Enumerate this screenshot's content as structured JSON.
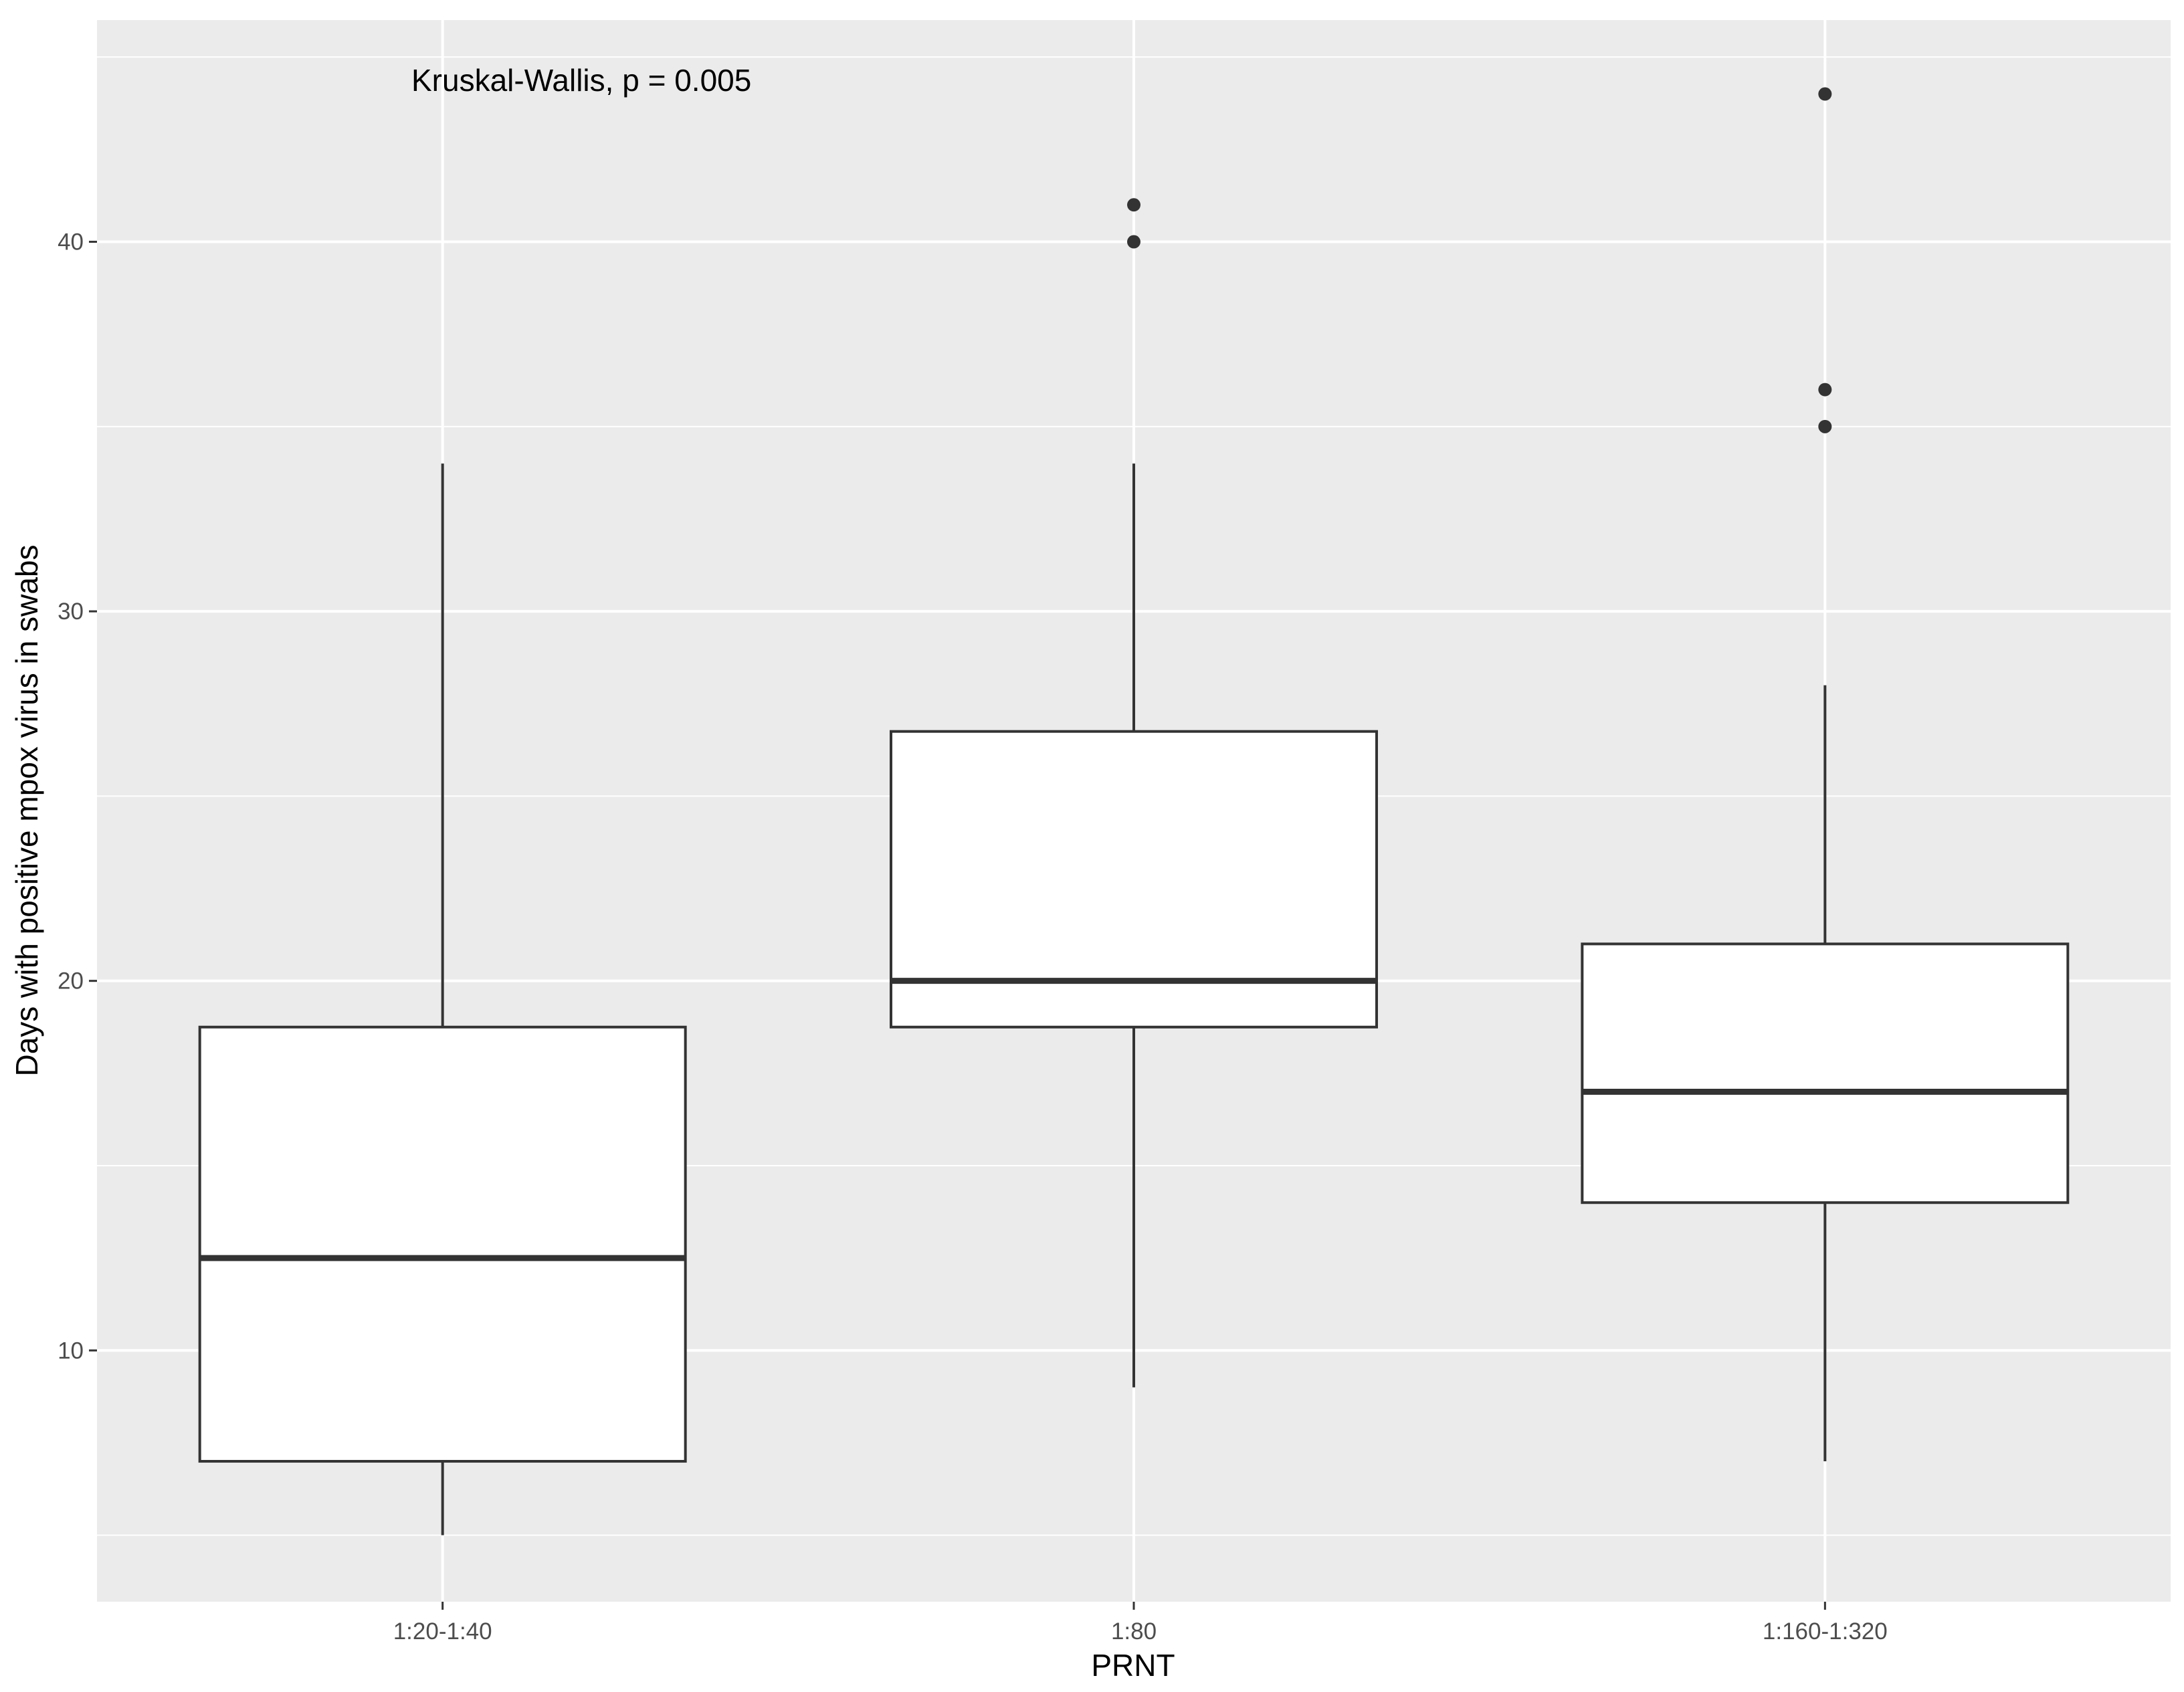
{
  "chart_data": {
    "type": "boxplot",
    "annotation": "Kruskal-Wallis, p = 0.005",
    "xlabel": "PRNT",
    "ylabel": "Days with positive mpox virus in swabs",
    "y_ticks": [
      10,
      20,
      30,
      40
    ],
    "ylim": [
      3.2,
      46.0
    ],
    "grid": true,
    "categories": [
      "1:20-1:40",
      "1:80",
      "1:160-1:320"
    ],
    "boxes": [
      {
        "category": "1:20-1:40",
        "whisker_low": 5,
        "q1": 7,
        "median": 12.5,
        "q3": 18.75,
        "whisker_high": 34,
        "outliers": []
      },
      {
        "category": "1:80",
        "whisker_low": 9,
        "q1": 18.75,
        "median": 20,
        "q3": 26.75,
        "whisker_high": 34,
        "outliers": [
          40,
          41
        ]
      },
      {
        "category": "1:160-1:320",
        "whisker_low": 7,
        "q1": 14,
        "median": 17,
        "q3": 21,
        "whisker_high": 28,
        "outliers": [
          35,
          36,
          44
        ]
      }
    ],
    "colors": {
      "panel_background": "#EBEBEB",
      "grid": "#FFFFFF",
      "box_fill": "#FFFFFF",
      "box_stroke": "#333333",
      "text": "#000000",
      "tick_text": "#4D4D4D"
    }
  }
}
